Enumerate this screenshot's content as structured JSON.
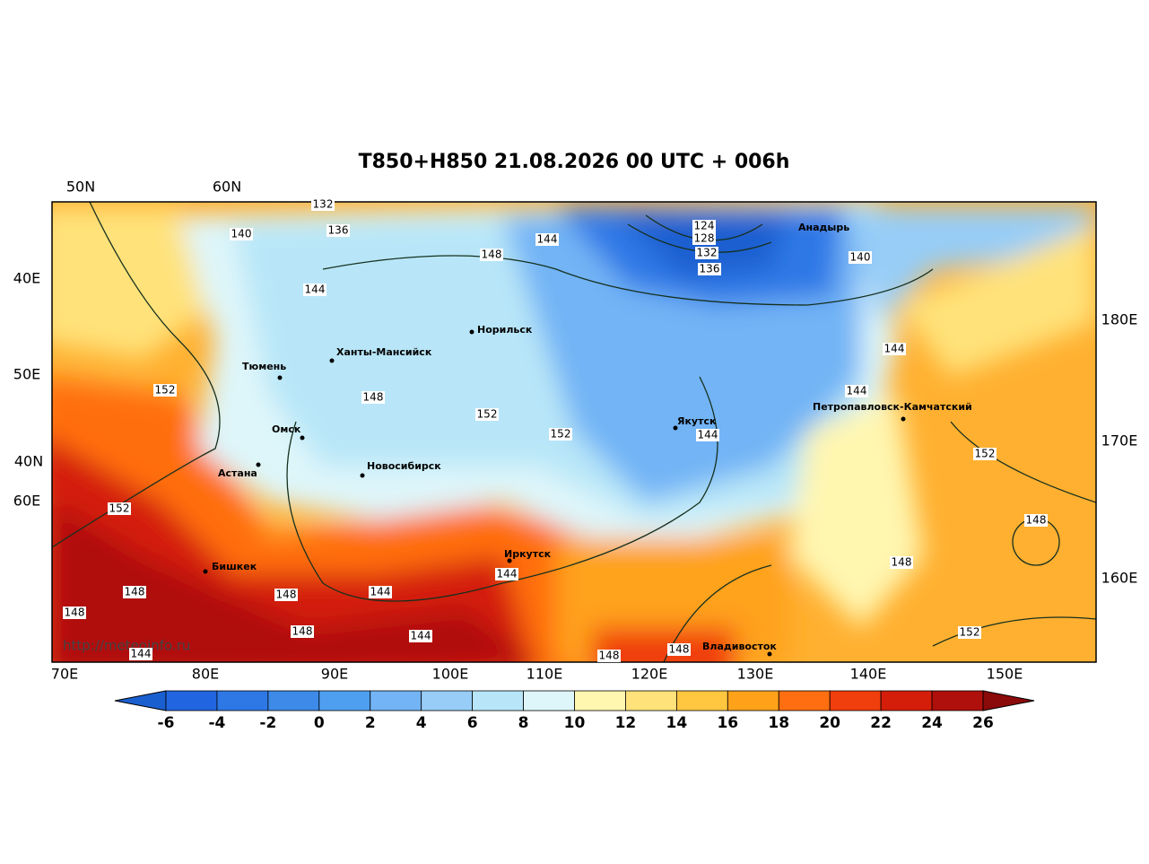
{
  "title": "T850+H850 21.08.2026 00 UTC + 006h",
  "source": "http://meteoinfo.ru",
  "top_labels": [
    "50N",
    "60N"
  ],
  "left_labels": [
    "40E",
    "50E",
    "40N",
    "60E"
  ],
  "right_labels": [
    "180E",
    "170E",
    "160E"
  ],
  "bottom_labels": [
    "70E",
    "80E",
    "90E",
    "100E",
    "110E",
    "120E",
    "130E",
    "140E",
    "150E"
  ],
  "cities": [
    "Норильск",
    "Ханты-Мансийск",
    "Тюмень",
    "Омск",
    "Астана",
    "Новосибирск",
    "Якутск",
    "Анадырь",
    "Петропавловск-Камчатский",
    "Иркутск",
    "Бишкек",
    "Владивосток"
  ],
  "contour_labels": [
    132,
    136,
    140,
    144,
    148,
    144,
    124,
    128,
    132,
    136,
    140,
    144,
    144,
    152,
    148,
    152,
    152,
    144,
    152,
    148,
    152,
    148,
    148,
    148,
    144,
    144,
    148,
    148,
    144,
    144,
    148,
    148,
    152
  ],
  "colorbar": {
    "ticks": [
      -6,
      -4,
      -2,
      0,
      2,
      4,
      6,
      8,
      10,
      12,
      14,
      16,
      18,
      20,
      22,
      24,
      26
    ],
    "colors": [
      "#1a5fd0",
      "#2166e0",
      "#2e78e6",
      "#3d8ae8",
      "#4f9ff0",
      "#72b4f5",
      "#97cdf7",
      "#b8e6f8",
      "#def6fa",
      "#fff6b0",
      "#ffe27a",
      "#ffc640",
      "#ffa21a",
      "#ff6e10",
      "#f03e0c",
      "#d41e0a",
      "#b0100c",
      "#8b0a0a"
    ]
  }
}
